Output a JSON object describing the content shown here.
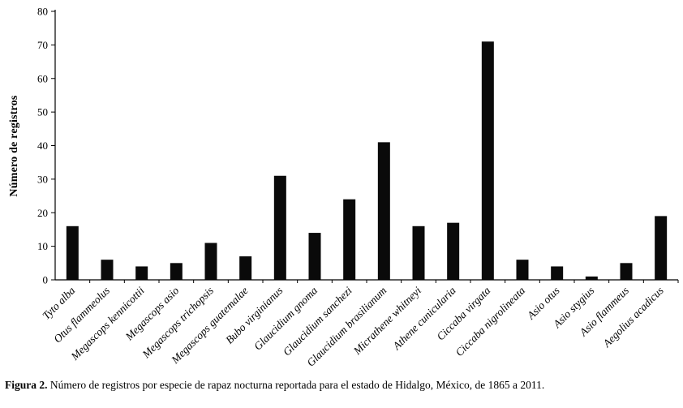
{
  "chart_data": {
    "type": "bar",
    "title": "",
    "xlabel": "",
    "ylabel": "Número de registros",
    "ylim": [
      0,
      80
    ],
    "yticks": [
      0,
      10,
      20,
      30,
      40,
      50,
      60,
      70,
      80
    ],
    "grid": false,
    "legend": false,
    "bar_color": "#0a0a0a",
    "categories": [
      "Tyto alba",
      "Otus flammeolus",
      "Megascops kennicottii",
      "Megascops asio",
      "Megascops trichopsis",
      "Megascops guatemalae",
      "Bubo virginianus",
      "Glaucidium gnoma",
      "Glaucidium sanchezi",
      "Glaucidium brasilianum",
      "Micrathene whitneyi",
      "Athene cunicularia",
      "Ciccaba virgata",
      "Ciccaba nigrolineata",
      "Asio otus",
      "Asio stygius",
      "Asio flammeus",
      "Aegolius acadicus"
    ],
    "values": [
      16,
      6,
      4,
      5,
      11,
      7,
      31,
      14,
      24,
      41,
      16,
      17,
      71,
      6,
      4,
      1,
      5,
      19
    ]
  },
  "caption": {
    "prefix": "Figura 2.",
    "text": " Número de registros por especie de rapaz nocturna reportada para el estado de Hidalgo, México, de 1865 a 2011."
  }
}
